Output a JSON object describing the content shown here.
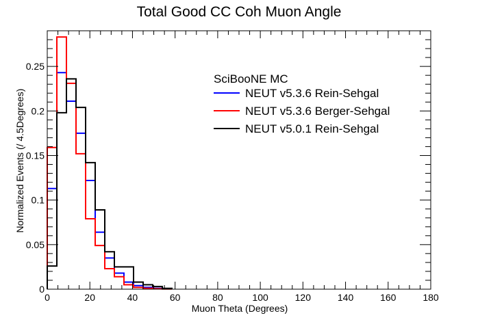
{
  "chart_data": {
    "type": "line",
    "subtype": "step-histogram",
    "title": "Total Good CC Coh Muon Angle",
    "xlabel": "Muon Theta (Degrees)",
    "ylabel": "Normalized Events (/ 4.5Degrees)",
    "xlim": [
      0,
      180
    ],
    "ylim": [
      0,
      0.29
    ],
    "bin_width": 4.5,
    "x_ticks": [
      0,
      20,
      40,
      60,
      80,
      100,
      120,
      140,
      160,
      180
    ],
    "y_ticks": [
      0,
      0.05,
      0.1,
      0.15,
      0.2,
      0.25
    ],
    "x_tick_labels": [
      "0",
      "20",
      "40",
      "60",
      "80",
      "100",
      "120",
      "140",
      "160",
      "180"
    ],
    "y_tick_labels": [
      "0",
      "0.05",
      "0.1",
      "0.15",
      "0.2",
      "0.25"
    ],
    "grid": false,
    "legend": {
      "header": "SciBooNE MC",
      "placement": "top-right"
    },
    "series": [
      {
        "name": "NEUT v5.3.6 Rein-Sehgal",
        "color": "#0000ff",
        "values": [
          0.113,
          0.243,
          0.211,
          0.175,
          0.122,
          0.064,
          0.035,
          0.018,
          0.008,
          0.004,
          0.002,
          0.001,
          0.0005
        ]
      },
      {
        "name": "NEUT v5.3.6 Berger-Sehgal",
        "color": "#ff0000",
        "values": [
          0.159,
          0.283,
          0.231,
          0.152,
          0.079,
          0.049,
          0.023,
          0.014,
          0.005,
          0.002,
          0.001,
          0.0005,
          0.0002
        ]
      },
      {
        "name": "NEUT v5.0.1 Rein-Sehgal",
        "color": "#000000",
        "values": [
          0.026,
          0.198,
          0.236,
          0.204,
          0.142,
          0.089,
          0.042,
          0.025,
          0.025,
          0.008,
          0.005,
          0.003,
          0.001
        ]
      }
    ]
  }
}
